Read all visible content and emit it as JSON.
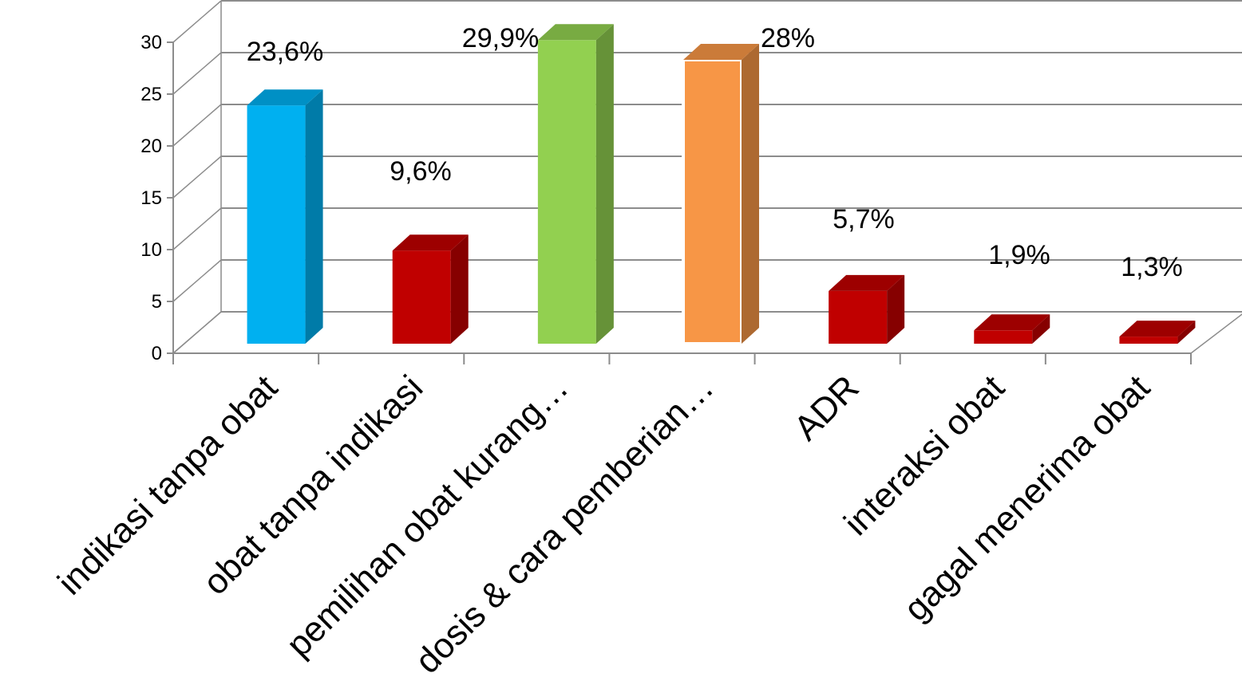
{
  "chart_data": {
    "type": "bar",
    "categories": [
      "indikasi tanpa obat",
      "obat tanpa indikasi",
      "pemilihan obat kurang…",
      "dosis & cara pemberian…",
      "ADR",
      "interaksi obat",
      "gagal menerima obat"
    ],
    "values": [
      23.6,
      9.6,
      29.9,
      28,
      5.7,
      1.9,
      1.3
    ],
    "data_labels": [
      "23,6%",
      "9,6%",
      "29,9%",
      "28%",
      "5,7%",
      "1,9%",
      "1,3%"
    ],
    "colors": [
      "#00b0f0",
      "#c00000",
      "#92d050",
      "#f79646",
      "#c00000",
      "#c00000",
      "#c00000"
    ],
    "y_ticks": [
      "0",
      "5",
      "10",
      "15",
      "20",
      "25",
      "30"
    ],
    "ylim": [
      0,
      30
    ],
    "grid": true,
    "style": "3d-column"
  }
}
